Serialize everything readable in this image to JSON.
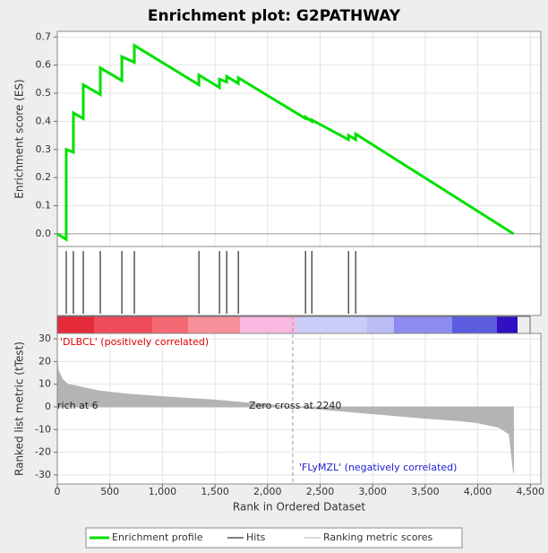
{
  "chart_data": [
    {
      "type": "line",
      "title": "Enrichment plot: G2PATHWAY",
      "ylabel": "Enrichment score (ES)",
      "series": [
        {
          "name": "Enrichment profile",
          "color": "#00e000",
          "x": [
            0,
            85,
            85,
            153,
            153,
            247,
            247,
            409,
            409,
            614,
            614,
            733,
            733,
            1347,
            1347,
            1543,
            1543,
            1611,
            1611,
            1722,
            1722,
            2361,
            2361,
            2421,
            2421,
            2770,
            2770,
            2838,
            2838,
            4340
          ],
          "values": [
            0,
            -0.02,
            0.3,
            0.29,
            0.43,
            0.41,
            0.53,
            0.495,
            0.59,
            0.545,
            0.63,
            0.61,
            0.67,
            0.53,
            0.565,
            0.52,
            0.55,
            0.54,
            0.56,
            0.535,
            0.555,
            0.41,
            0.415,
            0.4,
            0.405,
            0.335,
            0.35,
            0.335,
            0.355,
            0
          ]
        }
      ],
      "xlim": [
        0,
        4600
      ],
      "ylim": [
        -0.045,
        0.72
      ],
      "yticks": [
        {
          "value": 0,
          "label": "0.0"
        },
        0.1,
        0.2,
        0.3,
        0.4,
        0.5,
        0.6,
        0.7
      ],
      "grid": true
    },
    {
      "type": "hits",
      "series": [
        {
          "name": "Hits",
          "color": "#000000",
          "x": [
            85,
            153,
            247,
            409,
            614,
            733,
            1347,
            1543,
            1611,
            1722,
            2361,
            2421,
            2770,
            2838
          ]
        }
      ],
      "xlim": [
        0,
        4600
      ]
    },
    {
      "type": "area",
      "ylabel": "Ranked list metric (tTest)",
      "xlabel": "Rank in Ordered Dataset",
      "series": [
        {
          "name": "Ranking metric scores",
          "color": "#b4b4b4",
          "x": [
            0,
            10,
            50,
            100,
            200,
            400,
            700,
            1000,
            1500,
            2000,
            2240,
            2500,
            3000,
            3500,
            3800,
            4000,
            4200,
            4300,
            4340
          ],
          "values": [
            20,
            16,
            12,
            10,
            9,
            7,
            5.5,
            4.5,
            3,
            1,
            0,
            -1,
            -3,
            -5,
            -6,
            -7,
            -9,
            -12,
            -29
          ]
        }
      ],
      "xlim": [
        0,
        4600
      ],
      "ylim": [
        -34,
        32.4
      ],
      "yticks": [
        30,
        20,
        10,
        0,
        -10,
        -20,
        -30
      ],
      "xticks": [
        0,
        500,
        {
          "value": 1000,
          "label": "1,000"
        },
        {
          "value": 1500,
          "label": "1,500"
        },
        {
          "value": 2000,
          "label": "2,000"
        },
        {
          "value": 2500,
          "label": "2,500"
        },
        {
          "value": 3000,
          "label": "3,000"
        },
        {
          "value": 3500,
          "label": "3,500"
        },
        {
          "value": 4000,
          "label": "4,000"
        },
        {
          "value": 4500,
          "label": "4,500"
        }
      ],
      "zero_cross": 2240,
      "annotations": [
        "'DLBCL' (positively correlated)",
        "rich at 6",
        "Zero cross at 2240",
        "'FLyMZL' (negatively correlated)"
      ]
    }
  ]
}
